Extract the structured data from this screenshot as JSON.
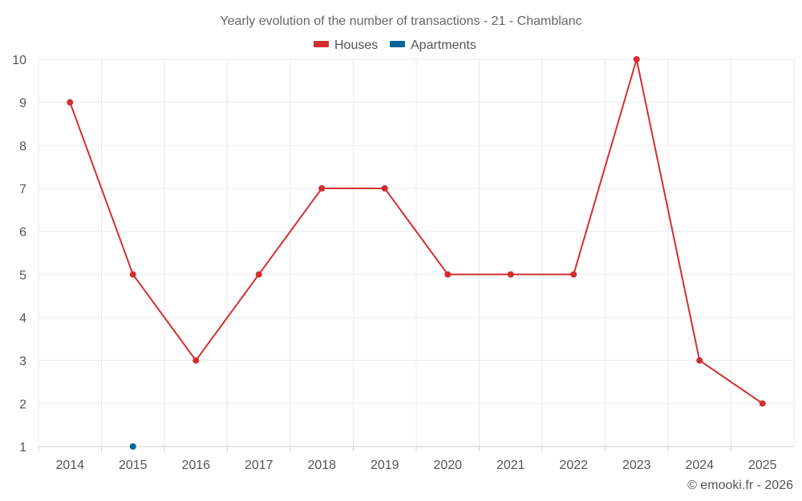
{
  "chart_data": {
    "type": "line",
    "title": "Yearly evolution of the number of transactions - 21 - Chamblanc",
    "categories": [
      "2014",
      "2015",
      "2016",
      "2017",
      "2018",
      "2019",
      "2020",
      "2021",
      "2022",
      "2023",
      "2024",
      "2025"
    ],
    "series": [
      {
        "name": "Houses",
        "color": "#d32f2f",
        "values": [
          9,
          5,
          3,
          5,
          7,
          7,
          5,
          5,
          5,
          10,
          3,
          2
        ]
      },
      {
        "name": "Apartments",
        "color": "#006699",
        "values": [
          null,
          1,
          null,
          null,
          null,
          null,
          null,
          null,
          null,
          null,
          null,
          null
        ]
      }
    ],
    "ylim": [
      1,
      10
    ],
    "yticks": [
      1,
      2,
      3,
      4,
      5,
      6,
      7,
      8,
      9,
      10
    ],
    "xlabel": "",
    "ylabel": "",
    "legend_position": "top-center",
    "grid": true
  },
  "credit": "© emooki.fr - 2026"
}
